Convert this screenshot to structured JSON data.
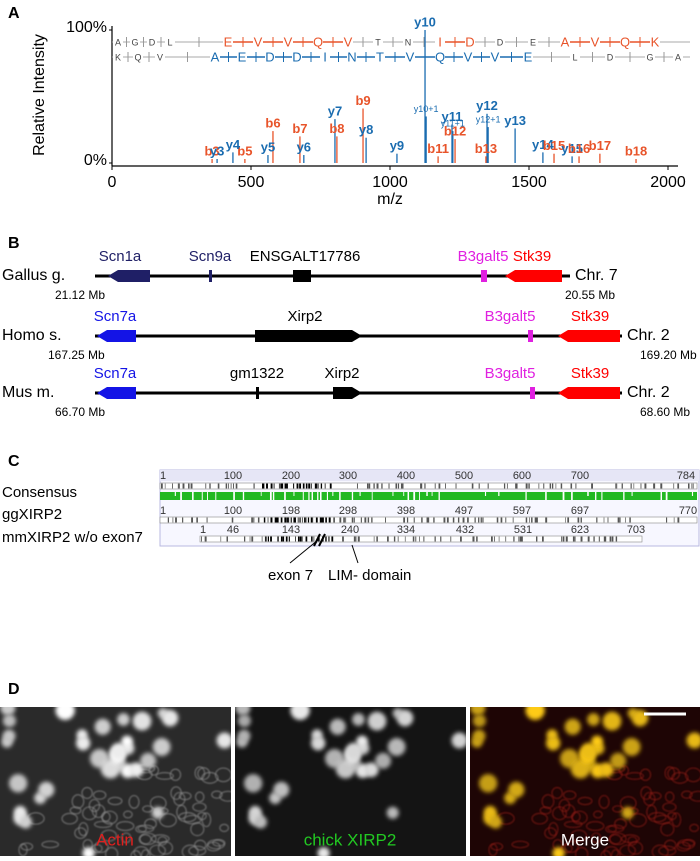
{
  "panels": [
    "A",
    "B",
    "C",
    "D"
  ],
  "chart_data": {
    "type": "spectrum",
    "ylabel": "Relative Intensity",
    "xlabel": "m/z",
    "xlim": [
      0,
      2000
    ],
    "xticks": [
      0,
      500,
      1000,
      1500,
      2000
    ],
    "ylim": [
      0,
      100
    ],
    "yticks": [
      {
        "value": 0,
        "label": "0%"
      },
      {
        "value": 100,
        "label": "100%"
      }
    ],
    "b_color": "#e8542a",
    "y_color": "#1a6cb0",
    "sequence_top": {
      "residues": [
        "A",
        "G",
        "D",
        "L",
        "E",
        "V",
        "V",
        "Q",
        "V",
        "T",
        "N",
        "I",
        "D",
        "D",
        "E",
        "A",
        "V",
        "Q",
        "K"
      ],
      "highlighted": [
        false,
        false,
        false,
        false,
        true,
        true,
        true,
        true,
        true,
        false,
        false,
        true,
        true,
        false,
        false,
        true,
        true,
        true,
        true
      ]
    },
    "sequence_bottom": {
      "residues": [
        "K",
        "Q",
        "V",
        "A",
        "E",
        "D",
        "D",
        "I",
        "N",
        "T",
        "V",
        "Q",
        "V",
        "V",
        "E",
        "L",
        "D",
        "G",
        "A"
      ],
      "highlighted": [
        false,
        false,
        false,
        true,
        true,
        true,
        true,
        true,
        true,
        true,
        true,
        true,
        true,
        true,
        true,
        false,
        false,
        false,
        false
      ]
    },
    "peaks": [
      {
        "label": "y10",
        "mz": 1126,
        "intensity": 100,
        "ion": "y"
      },
      {
        "label": "y10+1",
        "mz": 1130,
        "intensity": 35,
        "ion": "y",
        "minor": true
      },
      {
        "label": "b9",
        "mz": 903,
        "intensity": 41,
        "ion": "b"
      },
      {
        "label": "y7",
        "mz": 802,
        "intensity": 33,
        "ion": "y"
      },
      {
        "label": "b8",
        "mz": 809,
        "intensity": 20,
        "ion": "b"
      },
      {
        "label": "y8",
        "mz": 914,
        "intensity": 19,
        "ion": "y"
      },
      {
        "label": "b7",
        "mz": 676,
        "intensity": 20,
        "ion": "b"
      },
      {
        "label": "b6",
        "mz": 579,
        "intensity": 24,
        "ion": "b"
      },
      {
        "label": "y6",
        "mz": 690,
        "intensity": 6,
        "ion": "y"
      },
      {
        "label": "y5",
        "mz": 561,
        "intensity": 6,
        "ion": "y"
      },
      {
        "label": "b5",
        "mz": 478,
        "intensity": 3,
        "ion": "b"
      },
      {
        "label": "y4",
        "mz": 435,
        "intensity": 8,
        "ion": "y"
      },
      {
        "label": "b3",
        "mz": 360,
        "intensity": 3,
        "ion": "b"
      },
      {
        "label": "y3",
        "mz": 378,
        "intensity": 3,
        "ion": "y"
      },
      {
        "label": "y9",
        "mz": 1025,
        "intensity": 7,
        "ion": "y"
      },
      {
        "label": "b11",
        "mz": 1173,
        "intensity": 5,
        "ion": "b"
      },
      {
        "label": "y11",
        "mz": 1223,
        "intensity": 29,
        "ion": "y"
      },
      {
        "label": "y11+1",
        "mz": 1226,
        "intensity": 24,
        "ion": "y",
        "minor": true
      },
      {
        "label": "b12",
        "mz": 1234,
        "intensity": 18,
        "ion": "b"
      },
      {
        "label": "y12",
        "mz": 1349,
        "intensity": 37,
        "ion": "y"
      },
      {
        "label": "y12+1",
        "mz": 1353,
        "intensity": 27,
        "ion": "y",
        "minor": true
      },
      {
        "label": "y13",
        "mz": 1450,
        "intensity": 26,
        "ion": "y"
      },
      {
        "label": "b13",
        "mz": 1345,
        "intensity": 5,
        "ion": "b"
      },
      {
        "label": "y14",
        "mz": 1550,
        "intensity": 8,
        "ion": "y"
      },
      {
        "label": "b15",
        "mz": 1590,
        "intensity": 7,
        "ion": "b"
      },
      {
        "label": "y15",
        "mz": 1655,
        "intensity": 5,
        "ion": "y"
      },
      {
        "label": "b16",
        "mz": 1680,
        "intensity": 5,
        "ion": "b"
      },
      {
        "label": "b17",
        "mz": 1755,
        "intensity": 7,
        "ion": "b"
      },
      {
        "label": "b18",
        "mz": 1885,
        "intensity": 3,
        "ion": "b"
      }
    ]
  },
  "gene_maps": {
    "rows": [
      {
        "species": "Gallus g.",
        "chromosome": "Chr. 7",
        "start": "21.12 Mb",
        "end": "20.55 Mb",
        "genes": [
          {
            "name": "Scn1a",
            "color": "#1f1f66"
          },
          {
            "name": "Scn9a",
            "color": "#1f1f66"
          },
          {
            "name": "ENSGALT17786",
            "color": "#000000"
          },
          {
            "name": "B3galt5",
            "color": "#e020e0"
          },
          {
            "name": "Stk39",
            "color": "#ff0000"
          }
        ]
      },
      {
        "species": "Homo s.",
        "chromosome": "Chr. 2",
        "start": "167.25 Mb",
        "end": "169.20 Mb",
        "genes": [
          {
            "name": "Scn7a",
            "color": "#1414e6"
          },
          {
            "name": "Xirp2",
            "color": "#000000"
          },
          {
            "name": "B3galt5",
            "color": "#e020e0"
          },
          {
            "name": "Stk39",
            "color": "#ff0000"
          }
        ]
      },
      {
        "species": "Mus m.",
        "chromosome": "Chr. 2",
        "start": "66.70 Mb",
        "end": "68.60 Mb",
        "genes": [
          {
            "name": "Scn7a",
            "color": "#1414e6"
          },
          {
            "name": "gm1322",
            "color": "#000000"
          },
          {
            "name": "Xirp2",
            "color": "#000000"
          },
          {
            "name": "B3galt5",
            "color": "#e020e0"
          },
          {
            "name": "Stk39",
            "color": "#ff0000"
          }
        ]
      }
    ]
  },
  "alignment": {
    "rows": [
      {
        "name": "Consensus",
        "positions": [
          "1",
          "100",
          "200",
          "300",
          "400",
          "500",
          "600",
          "700",
          "784"
        ]
      },
      {
        "name": "ggXIRP2",
        "positions": [
          "1",
          "100",
          "198",
          "298",
          "398",
          "497",
          "597",
          "697",
          "770"
        ]
      },
      {
        "name": "mmXIRP2 w/o exon7",
        "positions": [
          "1",
          "46",
          "143",
          "240",
          "334",
          "432",
          "531",
          "623",
          "703"
        ]
      }
    ],
    "annotations": [
      "exon 7",
      "LIM- domain"
    ]
  },
  "images": [
    {
      "label": "Actin",
      "color": "#e0201e"
    },
    {
      "label": "chick XIRP2",
      "color": "#22c822"
    },
    {
      "label": "Merge",
      "color": "#ffffff"
    }
  ]
}
